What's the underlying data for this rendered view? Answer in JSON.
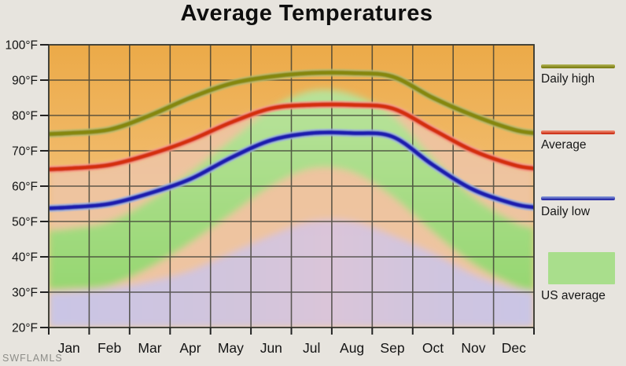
{
  "title": "Average Temperatures",
  "watermark": "SWFLAMLS",
  "colors": {
    "background": "#e7e4de",
    "plot_orange_top": "#ecaa48",
    "plot_orange_bottom": "#f6d098",
    "salmon_area": "#eec4a3",
    "green_area": "#a3dc81",
    "lavender_area": "#c8c5e7",
    "lavender_pink_mid": "#d9c4da",
    "grid": "#3c3c33",
    "daily_high_line": "#85870e",
    "average_line": "#d42d10",
    "daily_low_line": "#1d1dae"
  },
  "y_axis": {
    "tick_labels": [
      "100°F",
      "90°F",
      "80°F",
      "70°F",
      "60°F",
      "50°F",
      "40°F",
      "30°F",
      "20°F"
    ]
  },
  "x_axis": {
    "tick_labels": [
      "Jan",
      "Feb",
      "Mar",
      "Apr",
      "May",
      "Jun",
      "Jul",
      "Aug",
      "Sep",
      "Oct",
      "Nov",
      "Dec"
    ]
  },
  "legend": {
    "items": [
      {
        "label": "Daily high",
        "swatch": "line",
        "color": "#85870e"
      },
      {
        "label": "Average",
        "swatch": "line",
        "color": "#d42d10"
      },
      {
        "label": "Daily low",
        "swatch": "line",
        "color": "#1d1dae"
      },
      {
        "label": "US average",
        "swatch": "area",
        "color": "#a9de8c"
      }
    ]
  },
  "chart_data": {
    "type": "line",
    "title": "Average Temperatures",
    "categories": [
      "Jan",
      "Feb",
      "Mar",
      "Apr",
      "May",
      "Jun",
      "Jul",
      "Aug",
      "Sep",
      "Oct",
      "Nov",
      "Dec"
    ],
    "ylim": [
      20,
      100
    ],
    "yticks": [
      100,
      90,
      80,
      70,
      60,
      50,
      40,
      30,
      20
    ],
    "y_unit": "°F",
    "grid": true,
    "legend_position": "right",
    "series": [
      {
        "name": "Daily high",
        "color": "#85870e",
        "values": [
          75,
          76,
          80,
          85,
          89,
          91,
          92,
          92,
          91,
          85,
          80,
          76
        ]
      },
      {
        "name": "Average",
        "color": "#d42d10",
        "values": [
          65,
          66,
          69,
          73,
          78,
          82,
          83,
          83,
          82,
          76,
          70,
          66
        ]
      },
      {
        "name": "Daily low",
        "color": "#1d1dae",
        "values": [
          54,
          55,
          58,
          62,
          68,
          73,
          75,
          75,
          74,
          66,
          59,
          55
        ]
      }
    ],
    "background_bands": {
      "us_average_high": [
        48,
        50,
        56,
        64,
        73,
        82,
        87,
        86,
        80,
        68,
        57,
        50
      ],
      "us_average_low": [
        31,
        32,
        37,
        44,
        52,
        60,
        65,
        64,
        57,
        47,
        38,
        32
      ],
      "lavender_top": [
        30,
        31,
        33,
        36,
        41,
        46,
        50,
        50,
        46,
        41,
        35,
        31
      ]
    }
  }
}
